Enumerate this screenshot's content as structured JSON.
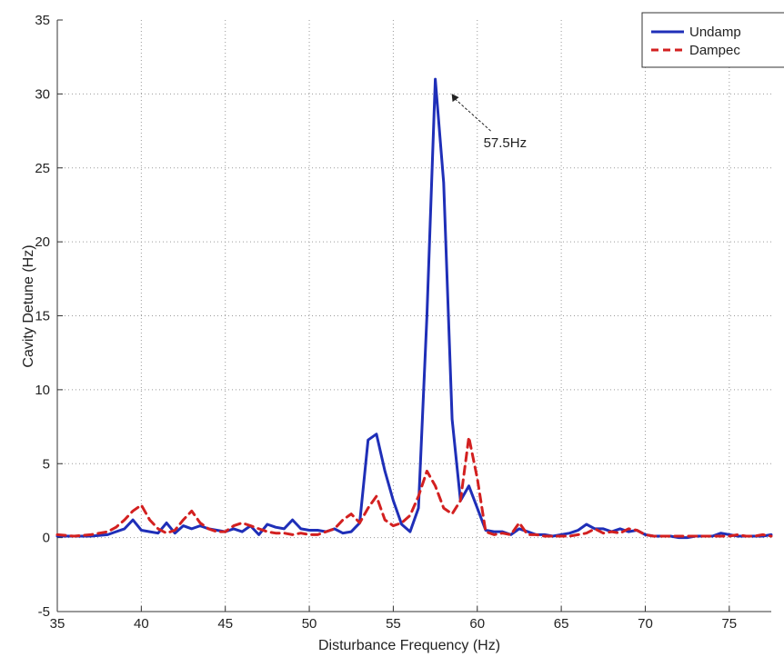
{
  "chart_data": {
    "type": "line",
    "title": "",
    "xlabel": "Disturbance Frequency (Hz)",
    "ylabel": "Cavity Detune (Hz)",
    "xlim": [
      35,
      77.5
    ],
    "ylim": [
      -5,
      35
    ],
    "xticks": [
      35,
      40,
      45,
      50,
      55,
      60,
      65,
      70,
      75
    ],
    "yticks": [
      -5,
      0,
      5,
      10,
      15,
      20,
      25,
      30,
      35
    ],
    "grid": true,
    "legend_position": "top-right",
    "series": [
      {
        "name": "Undamp",
        "color": "#1f2fb8",
        "style": "solid",
        "x": [
          35,
          36,
          37,
          38,
          38.5,
          39,
          39.5,
          40,
          40.5,
          41,
          41.5,
          42,
          42.5,
          43,
          43.5,
          44,
          44.5,
          45,
          45.5,
          46,
          46.5,
          47,
          47.5,
          48,
          48.5,
          49,
          49.5,
          50,
          50.5,
          51,
          51.5,
          52,
          52.5,
          53,
          53.5,
          54,
          54.5,
          55,
          55.5,
          56,
          56.5,
          57,
          57.5,
          58,
          58.5,
          59,
          59.5,
          60,
          60.5,
          61,
          61.5,
          62,
          62.5,
          63,
          63.5,
          64,
          64.5,
          65,
          65.5,
          66,
          66.5,
          67,
          67.5,
          68,
          68.5,
          69,
          69.5,
          70,
          70.5,
          71,
          71.5,
          72,
          72.5,
          73,
          73.5,
          74,
          74.5,
          75,
          75.5,
          76,
          76.5,
          77,
          77.5
        ],
        "y": [
          0.1,
          0.1,
          0.1,
          0.2,
          0.4,
          0.6,
          1.2,
          0.5,
          0.4,
          0.3,
          1.0,
          0.3,
          0.8,
          0.6,
          0.8,
          0.6,
          0.5,
          0.4,
          0.6,
          0.4,
          0.8,
          0.2,
          0.9,
          0.7,
          0.6,
          1.2,
          0.6,
          0.5,
          0.5,
          0.4,
          0.6,
          0.3,
          0.4,
          1.0,
          6.6,
          7.0,
          4.5,
          2.5,
          0.9,
          0.4,
          2.0,
          15.0,
          31.0,
          24.0,
          8.0,
          2.5,
          3.5,
          2.0,
          0.5,
          0.4,
          0.4,
          0.2,
          0.6,
          0.4,
          0.2,
          0.2,
          0.1,
          0.2,
          0.3,
          0.5,
          0.9,
          0.6,
          0.6,
          0.4,
          0.6,
          0.4,
          0.5,
          0.2,
          0.1,
          0.1,
          0.1,
          0.0,
          0.0,
          0.1,
          0.1,
          0.1,
          0.3,
          0.2,
          0.1,
          0.1,
          0.1,
          0.1,
          0.2
        ]
      },
      {
        "name": "Dampec",
        "color": "#d32020",
        "style": "dashed",
        "x": [
          35,
          36,
          37,
          38,
          38.5,
          39,
          39.5,
          40,
          40.5,
          41,
          41.5,
          42,
          42.5,
          43,
          43.5,
          44,
          44.5,
          45,
          45.5,
          46,
          46.5,
          47,
          47.5,
          48,
          48.5,
          49,
          49.5,
          50,
          50.5,
          51,
          51.5,
          52,
          52.5,
          53,
          53.5,
          54,
          54.5,
          55,
          55.5,
          56,
          56.5,
          57,
          57.5,
          58,
          58.5,
          59,
          59.5,
          60,
          60.5,
          61,
          61.5,
          62,
          62.5,
          63,
          63.5,
          64,
          64.5,
          65,
          65.5,
          66,
          66.5,
          67,
          67.5,
          68,
          68.5,
          69,
          69.5,
          70,
          70.5,
          71,
          71.5,
          72,
          72.5,
          73,
          73.5,
          74,
          74.5,
          75,
          75.5,
          76,
          76.5,
          77,
          77.5
        ],
        "y": [
          0.2,
          0.1,
          0.2,
          0.4,
          0.7,
          1.2,
          1.8,
          2.2,
          1.2,
          0.6,
          0.3,
          0.5,
          1.2,
          1.8,
          1.0,
          0.6,
          0.4,
          0.4,
          0.8,
          1.0,
          0.8,
          0.6,
          0.4,
          0.3,
          0.3,
          0.2,
          0.3,
          0.2,
          0.2,
          0.4,
          0.6,
          1.2,
          1.6,
          1.0,
          2.0,
          2.8,
          1.2,
          0.8,
          1.0,
          1.5,
          2.8,
          4.5,
          3.5,
          2.0,
          1.6,
          2.5,
          6.8,
          4.0,
          0.4,
          0.2,
          0.3,
          0.2,
          1.0,
          0.2,
          0.2,
          0.1,
          0.1,
          0.1,
          0.1,
          0.2,
          0.3,
          0.6,
          0.3,
          0.4,
          0.3,
          0.6,
          0.5,
          0.2,
          0.1,
          0.1,
          0.1,
          0.1,
          0.1,
          0.1,
          0.1,
          0.1,
          0.1,
          0.1,
          0.2,
          0.1,
          0.1,
          0.2,
          0.1
        ]
      }
    ],
    "annotations": [
      {
        "text": "57.5Hz",
        "x": 57.5,
        "y": 31
      }
    ]
  }
}
